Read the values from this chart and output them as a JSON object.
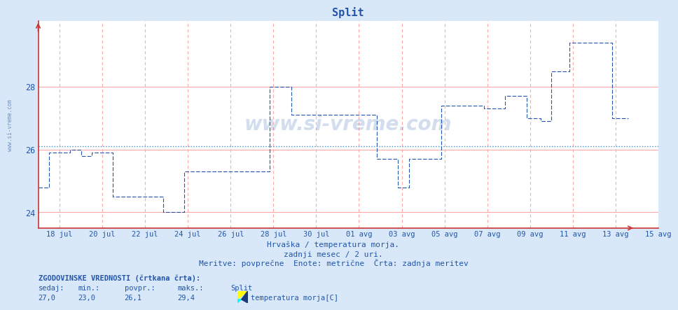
{
  "title": "Split",
  "xlabel_line1": "Hrvaška / temperatura morja.",
  "xlabel_line2": "zadnji mesec / 2 uri.",
  "xlabel_line3": "Meritve: povprečne  Enote: metrične  Črta: zadnja meritev",
  "background_color": "#d8e8f8",
  "plot_bg_color": "#ffffff",
  "line_color": "#2255aa",
  "avg_line_color": "#4488cc",
  "yticks": [
    24,
    26,
    28
  ],
  "avg_value": 26.1,
  "legend_label": "temperatura morja[C]",
  "bottom_text1": "ZGODOVINSKE VREDNOSTI (črtkana črta):",
  "bottom_col_headers": [
    "sedaj:",
    "min.:",
    "povpr.:",
    "maks.:",
    "Split"
  ],
  "bottom_col_values": [
    "27,0",
    "23,0",
    "26,1",
    "29,4"
  ],
  "watermark": "www.si-vreme.com",
  "date_labels": [
    "18 jul",
    "20 jul",
    "22 jul",
    "24 jul",
    "26 jul",
    "28 jul",
    "30 jul",
    "01 avg",
    "03 avg",
    "05 avg",
    "07 avg",
    "09 avg",
    "11 avg",
    "13 avg",
    "15 avg"
  ],
  "steps_per_2days": 24,
  "temperature_data": [
    24.8,
    24.8,
    24.8,
    24.8,
    24.8,
    24.8,
    25.9,
    25.9,
    25.9,
    25.9,
    25.9,
    25.9,
    25.9,
    25.9,
    25.9,
    25.9,
    25.9,
    25.9,
    26.0,
    26.0,
    26.0,
    26.0,
    26.0,
    26.0,
    25.8,
    25.8,
    25.8,
    25.8,
    25.8,
    25.8,
    25.9,
    25.9,
    25.9,
    25.9,
    25.9,
    25.9,
    25.9,
    25.9,
    25.9,
    25.9,
    25.9,
    25.9,
    24.5,
    24.5,
    24.5,
    24.5,
    24.5,
    24.5,
    24.5,
    24.5,
    24.5,
    24.5,
    24.5,
    24.5,
    24.5,
    24.5,
    24.5,
    24.5,
    24.5,
    24.5,
    24.5,
    24.5,
    24.5,
    24.5,
    24.5,
    24.5,
    24.5,
    24.5,
    24.5,
    24.5,
    24.0,
    24.0,
    24.0,
    24.0,
    24.0,
    24.0,
    24.0,
    24.0,
    24.0,
    24.0,
    24.0,
    24.0,
    25.3,
    25.3,
    25.3,
    25.3,
    25.3,
    25.3,
    25.3,
    25.3,
    25.3,
    25.3,
    25.3,
    25.3,
    25.3,
    25.3,
    25.3,
    25.3,
    25.3,
    25.3,
    25.3,
    25.3,
    25.3,
    25.3,
    25.3,
    25.3,
    25.3,
    25.3,
    25.3,
    25.3,
    25.3,
    25.3,
    25.3,
    25.3,
    25.3,
    25.3,
    25.3,
    25.3,
    25.3,
    25.3,
    25.3,
    25.3,
    25.3,
    25.3,
    25.3,
    25.3,
    25.3,
    25.3,
    25.3,
    25.3,
    28.0,
    28.0,
    28.0,
    28.0,
    28.0,
    28.0,
    28.0,
    28.0,
    28.0,
    28.0,
    28.0,
    28.0,
    27.1,
    27.1,
    27.1,
    27.1,
    27.1,
    27.1,
    27.1,
    27.1,
    27.1,
    27.1,
    27.1,
    27.1,
    27.1,
    27.1,
    27.1,
    27.1,
    27.1,
    27.1,
    27.1,
    27.1,
    27.1,
    27.1,
    27.1,
    27.1,
    27.1,
    27.1,
    27.1,
    27.1,
    27.1,
    27.1,
    27.1,
    27.1,
    27.1,
    27.1,
    27.1,
    27.1,
    27.1,
    27.1,
    27.1,
    27.1,
    27.1,
    27.1,
    27.1,
    27.1,
    27.1,
    27.1,
    27.1,
    27.1,
    25.7,
    25.7,
    25.7,
    25.7,
    25.7,
    25.7,
    25.7,
    25.7,
    25.7,
    25.7,
    25.7,
    25.7,
    24.8,
    24.8,
    24.8,
    24.8,
    24.8,
    24.8,
    25.7,
    25.7,
    25.7,
    25.7,
    25.7,
    25.7,
    25.7,
    25.7,
    25.7,
    25.7,
    25.7,
    25.7,
    25.7,
    25.7,
    25.7,
    25.7,
    25.7,
    25.7,
    27.4,
    27.4,
    27.4,
    27.4,
    27.4,
    27.4,
    27.4,
    27.4,
    27.4,
    27.4,
    27.4,
    27.4,
    27.4,
    27.4,
    27.4,
    27.4,
    27.4,
    27.4,
    27.4,
    27.4,
    27.4,
    27.4,
    27.4,
    27.4,
    27.3,
    27.3,
    27.3,
    27.3,
    27.3,
    27.3,
    27.3,
    27.3,
    27.3,
    27.3,
    27.3,
    27.3,
    27.7,
    27.7,
    27.7,
    27.7,
    27.7,
    27.7,
    27.7,
    27.7,
    27.7,
    27.7,
    27.7,
    27.7,
    27.0,
    27.0,
    27.0,
    27.0,
    27.0,
    27.0,
    27.0,
    27.0,
    26.9,
    26.9,
    26.9,
    26.9,
    26.9,
    26.9,
    28.5,
    28.5,
    28.5,
    28.5,
    28.5,
    28.5,
    28.5,
    28.5,
    28.5,
    28.5,
    29.4,
    29.4,
    29.4,
    29.4,
    29.4,
    29.4,
    29.4,
    29.4,
    29.4,
    29.4,
    29.4,
    29.4,
    29.4,
    29.4,
    29.4,
    29.4,
    29.4,
    29.4,
    29.4,
    29.4,
    29.4,
    29.4,
    29.4,
    29.4,
    27.0,
    27.0,
    27.0,
    27.0,
    27.0,
    27.0,
    27.0,
    27.0,
    27.0,
    27.0
  ]
}
